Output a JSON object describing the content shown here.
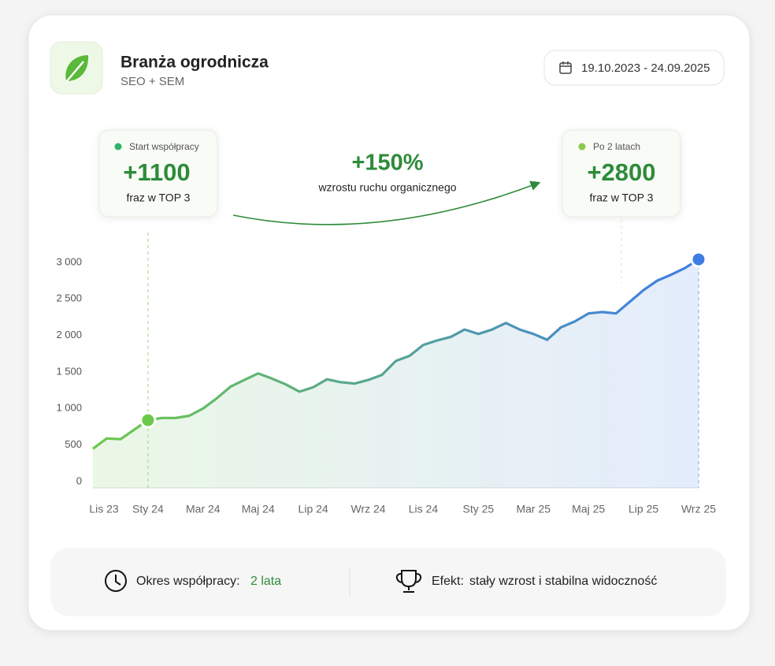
{
  "header": {
    "title": "Branża ogrodnicza",
    "subtitle": "SEO + SEM",
    "date_range": "19.10.2023 - 24.09.2025"
  },
  "chart_data": {
    "type": "line",
    "categories": [
      "Lis 23",
      null,
      null,
      null,
      "Sty 24",
      null,
      null,
      null,
      "Mar 24",
      null,
      null,
      null,
      "Maj 24",
      null,
      null,
      null,
      "Lip 24",
      null,
      null,
      null,
      "Wrz 24",
      null,
      null,
      null,
      "Lis 24",
      null,
      null,
      null,
      "Sty 25",
      null,
      null,
      null,
      "Mar 25",
      null,
      null,
      null,
      "Maj 25",
      null,
      null,
      null,
      "Lip 25",
      null,
      null,
      null,
      "Wrz 25"
    ],
    "values": [
      450,
      590,
      580,
      710,
      840,
      870,
      870,
      900,
      1000,
      1140,
      1300,
      1390,
      1480,
      1410,
      1330,
      1230,
      1290,
      1400,
      1360,
      1340,
      1390,
      1460,
      1650,
      1720,
      1870,
      1930,
      1980,
      2080,
      2020,
      2080,
      2170,
      2080,
      2020,
      1940,
      2110,
      2190,
      2300,
      2320,
      2300,
      2460,
      2620,
      2750,
      2830,
      2920,
      3040
    ],
    "colors": [
      "#6cc94a",
      "#3f7de6"
    ],
    "ylim": [
      0,
      3300
    ],
    "yticks": [
      0,
      500,
      {
        "value": 1000,
        "label": "1 000"
      },
      {
        "value": 1500,
        "label": "1 500"
      },
      {
        "value": 2000,
        "label": "2 000"
      },
      {
        "value": 2500,
        "label": "2 500"
      },
      {
        "value": 3000,
        "label": "3 000"
      }
    ],
    "annotations": {
      "start": {
        "caption": "Start współpracy",
        "value": "+1100",
        "unit": "fraz w TOP 3",
        "color": "#2fb36b"
      },
      "end": {
        "caption": "Po 2 latach",
        "value": "+2800",
        "unit": "fraz w TOP 3",
        "color": "#8cc84b"
      },
      "growth": {
        "value": "+150%",
        "text": "wzrostu ruchu organicznego"
      }
    }
  },
  "footer": {
    "period_label": "Okres współpracy:",
    "period_value": "2 lata",
    "effect_label": "Efekt:",
    "effect_value": "stały wzrost i stabilna widoczność"
  }
}
